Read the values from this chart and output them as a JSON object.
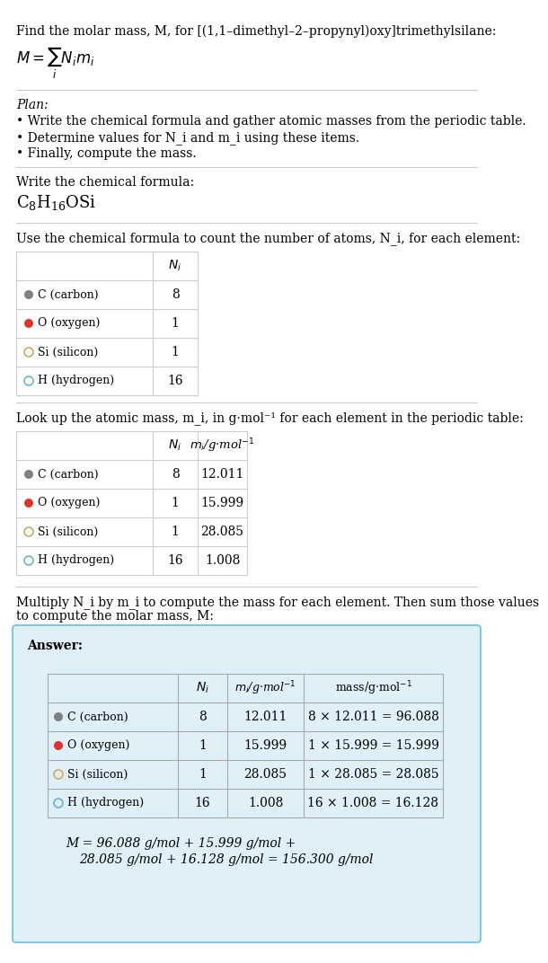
{
  "title_line": "Find the molar mass, M, for [(1,1–dimethyl–2–propynyl)oxy]trimethylsilane:",
  "formula_label": "M = ∑ N_i m_i",
  "formula_sub": "i",
  "bg_color": "#ffffff",
  "text_color": "#000000",
  "gray_text": "#888888",
  "plan_header": "Plan:",
  "plan_bullets": [
    "• Write the chemical formula and gather atomic masses from the periodic table.",
    "• Determine values for N_i and m_i using these items.",
    "• Finally, compute the mass."
  ],
  "chem_formula_header": "Write the chemical formula:",
  "chem_formula": "C₈H₁₆OSi",
  "count_header": "Use the chemical formula to count the number of atoms, N_i, for each element:",
  "lookup_header": "Look up the atomic mass, m_i, in g·mol⁻¹ for each element in the periodic table:",
  "multiply_header": "Multiply N_i by m_i to compute the mass for each element. Then sum those values\nto compute the molar mass, M:",
  "elements": [
    {
      "symbol": "C",
      "name": "carbon",
      "color": "#808080",
      "filled": true,
      "N": "8",
      "m": "12.011",
      "mass_eq": "8 × 12.011 = 96.088"
    },
    {
      "symbol": "O",
      "name": "oxygen",
      "color": "#e03030",
      "filled": true,
      "N": "1",
      "m": "15.999",
      "mass_eq": "1 × 15.999 = 15.999"
    },
    {
      "symbol": "Si",
      "name": "silicon",
      "color": "#d4a85a",
      "filled": false,
      "N": "1",
      "m": "28.085",
      "mass_eq": "1 × 28.085 = 28.085"
    },
    {
      "symbol": "H",
      "name": "hydrogen",
      "color": "#6ab0d4",
      "filled": false,
      "N": "16",
      "m": "1.008",
      "mass_eq": "16 × 1.008 = 16.128"
    }
  ],
  "answer_box_color": "#dff0f8",
  "answer_box_border": "#7ec8e3",
  "final_eq_line1": "M = 96.088 g/mol + 15.999 g/mol +",
  "final_eq_line2": "28.085 g/mol + 16.128 g/mol = 156.300 g/mol"
}
